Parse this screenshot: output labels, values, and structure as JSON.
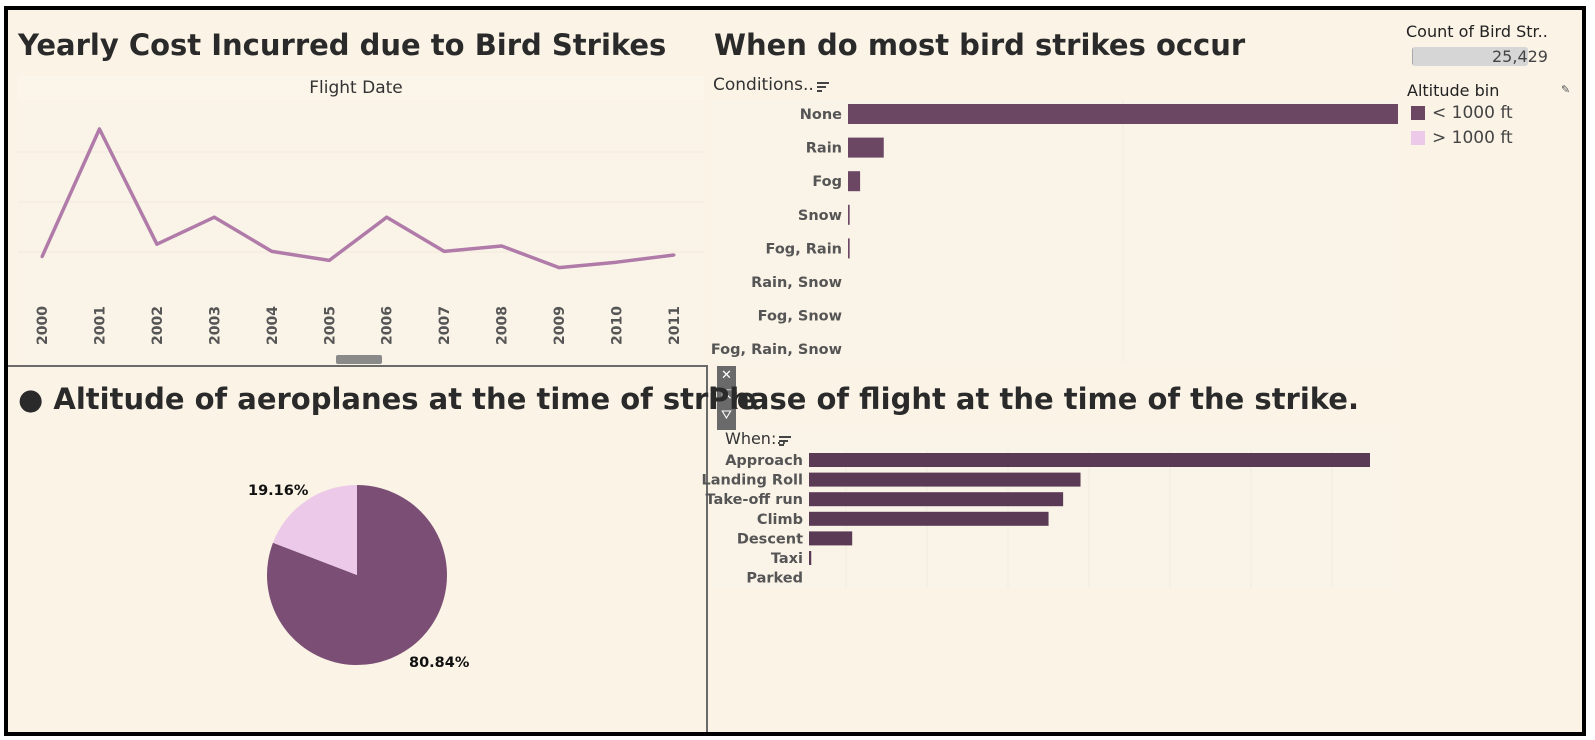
{
  "line_chart": {
    "title": "Yearly Cost Incurred due to Bird Strikes",
    "axis_label": "Flight Date",
    "color": "#b07ba8",
    "chart_data": {
      "type": "line",
      "title": "Yearly Cost Incurred due to Bird Strikes",
      "xlabel": "Flight Date",
      "x": [
        "2000",
        "2001",
        "2002",
        "2003",
        "2004",
        "2005",
        "2006",
        "2007",
        "2008",
        "2009",
        "2010",
        "2011"
      ],
      "values": [
        24,
        95,
        31,
        46,
        27,
        22,
        46,
        27,
        30,
        18,
        21,
        25
      ],
      "ylim": [
        0,
        110
      ],
      "note_units": ""
    }
  },
  "conditions_chart": {
    "title": "When do most bird strikes occur",
    "header": "Conditions..",
    "color": "#6b4764",
    "chart_data": {
      "type": "bar",
      "categories": [
        "None",
        "Rain",
        "Fog",
        "Snow",
        "Fog, Rain",
        "Rain, Snow",
        "Fog, Snow",
        "Fog, Rain, Snow"
      ],
      "values": [
        100,
        6.5,
        2.2,
        0.3,
        0.3,
        0,
        0,
        0
      ],
      "xlim": [
        0,
        100
      ]
    }
  },
  "legend": {
    "count_title": "Count of Bird Str..",
    "count_value": "25,429",
    "count_fill": 0.01,
    "altitude_title": "Altitude bin",
    "items": [
      {
        "label": "< 1000 ft",
        "color": "#6b4764"
      },
      {
        "label": "> 1000 ft",
        "color": "#ecc9e8"
      }
    ]
  },
  "pie_chart": {
    "title": "● Altitude of aeroplanes at the time of strike",
    "chart_data": {
      "type": "pie",
      "labels": [
        "< 1000 ft",
        "> 1000 ft"
      ],
      "values": [
        80.84,
        19.16
      ],
      "value_labels": [
        "80.84%",
        "19.16%"
      ],
      "colors": [
        "#7b4e75",
        "#ecc9e8"
      ]
    }
  },
  "phase_chart": {
    "title": "Phase of flight at the time of the strike.",
    "title_prefix": "P",
    "header": "When:..",
    "color": "#5a3a55",
    "chart_data": {
      "type": "bar",
      "categories": [
        "Approach",
        "Landing Roll",
        "Take-off run",
        "Climb",
        "Descent",
        "Taxi",
        "Parked"
      ],
      "values": [
        100,
        48.4,
        45.3,
        42.7,
        7.7,
        0.4,
        0
      ],
      "xlim": [
        0,
        100
      ]
    }
  }
}
